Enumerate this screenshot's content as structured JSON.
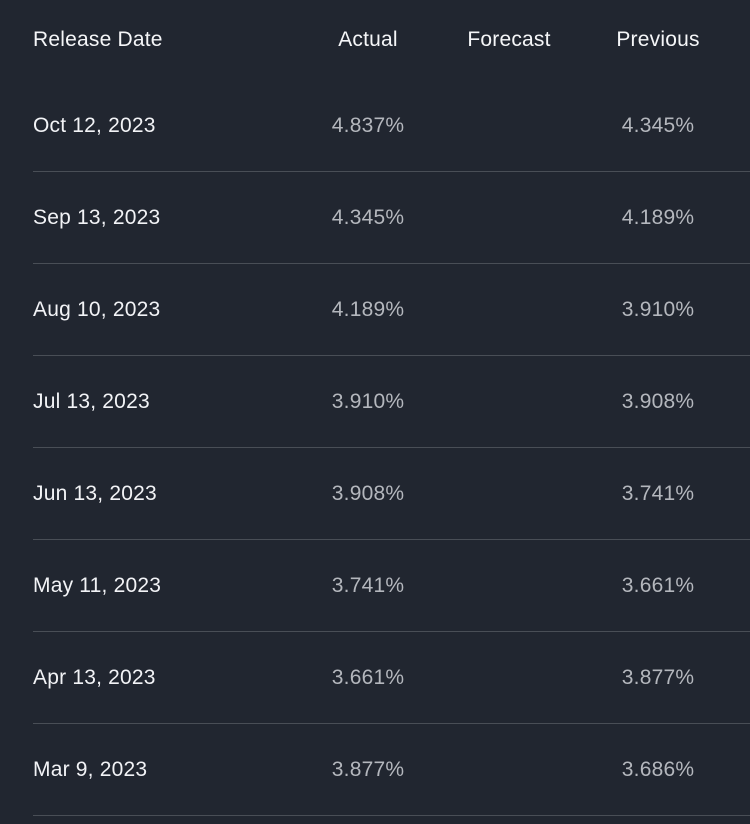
{
  "table": {
    "columns": [
      {
        "label": "Release Date"
      },
      {
        "label": "Actual"
      },
      {
        "label": "Forecast"
      },
      {
        "label": "Previous"
      }
    ],
    "rows": [
      {
        "date": "Oct 12, 2023",
        "actual": "4.837%",
        "forecast": "",
        "previous": "4.345%"
      },
      {
        "date": "Sep 13, 2023",
        "actual": "4.345%",
        "forecast": "",
        "previous": "4.189%"
      },
      {
        "date": "Aug 10, 2023",
        "actual": "4.189%",
        "forecast": "",
        "previous": "3.910%"
      },
      {
        "date": "Jul 13, 2023",
        "actual": "3.910%",
        "forecast": "",
        "previous": "3.908%"
      },
      {
        "date": "Jun 13, 2023",
        "actual": "3.908%",
        "forecast": "",
        "previous": "3.741%"
      },
      {
        "date": "May 11, 2023",
        "actual": "3.741%",
        "forecast": "",
        "previous": "3.661%"
      },
      {
        "date": "Apr 13, 2023",
        "actual": "3.661%",
        "forecast": "",
        "previous": "3.877%"
      },
      {
        "date": "Mar 9, 2023",
        "actual": "3.877%",
        "forecast": "",
        "previous": "3.686%"
      }
    ],
    "colors": {
      "background": "#212630",
      "divider": "#494e56",
      "header_text": "#f5f6f8",
      "date_text": "#f2f3f6",
      "value_text": "#b4b7bd"
    }
  }
}
